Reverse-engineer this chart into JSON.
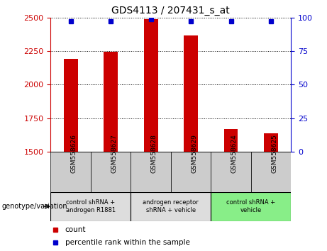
{
  "title": "GDS4113 / 207431_s_at",
  "samples": [
    "GSM558626",
    "GSM558627",
    "GSM558628",
    "GSM558629",
    "GSM558624",
    "GSM558625"
  ],
  "counts": [
    2190,
    2245,
    2490,
    2365,
    1670,
    1640
  ],
  "percentile_ranks": [
    97,
    97,
    99,
    97,
    97,
    97
  ],
  "ylim_left": [
    1500,
    2500
  ],
  "yticks_left": [
    1500,
    1750,
    2000,
    2250,
    2500
  ],
  "ylim_right": [
    0,
    100
  ],
  "yticks_right": [
    0,
    25,
    50,
    75,
    100
  ],
  "bar_color": "#cc0000",
  "marker_color": "#0000cc",
  "bar_width": 0.35,
  "group_list": [
    [
      0,
      2,
      "control shRNA +\nandrogen R1881",
      "#dddddd"
    ],
    [
      2,
      4,
      "androgen receptor\nshRNA + vehicle",
      "#dddddd"
    ],
    [
      4,
      6,
      "control shRNA +\nvehicle",
      "#88ee88"
    ]
  ],
  "legend_count": "count",
  "legend_pct": "percentile rank within the sample",
  "genotype_label": "genotype/variation",
  "left_yaxis_color": "#cc0000",
  "right_yaxis_color": "#0000cc",
  "tick_label_bg": "#cccccc",
  "grid_color": "#000000",
  "spine_color": "#000000"
}
